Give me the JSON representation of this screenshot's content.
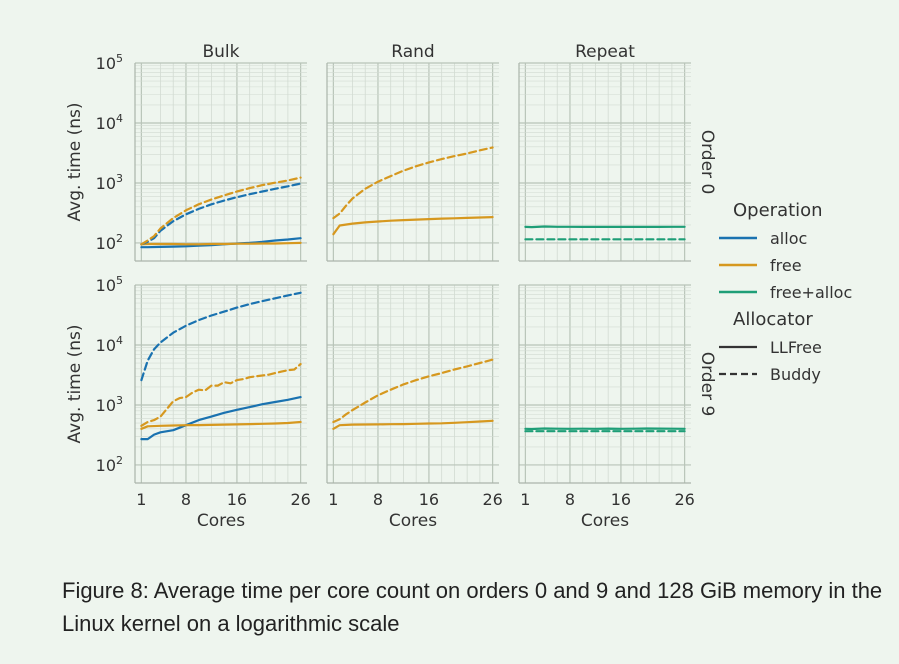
{
  "caption": "Figure 8: Average time per core count on orders 0 and 9 and 128 GiB memory in the Linux kernel on a logarithmic scale",
  "chart_data": {
    "type": "line",
    "scale": "log",
    "ylim": [
      50,
      100000
    ],
    "xlim": [
      0,
      27
    ],
    "xticks": [
      1,
      8,
      16,
      26
    ],
    "yticks": [
      100,
      1000,
      10000,
      100000
    ],
    "ytick_labels": [
      {
        "base": "10",
        "exp": "2"
      },
      {
        "base": "10",
        "exp": "3"
      },
      {
        "base": "10",
        "exp": "4"
      },
      {
        "base": "10",
        "exp": "5"
      }
    ],
    "columns": [
      "Bulk",
      "Rand",
      "Repeat"
    ],
    "rows": [
      "Order 0",
      "Order 9"
    ],
    "xlabel": "Cores",
    "ylabel": "Avg. time (ns)",
    "grid": true,
    "legend": {
      "placement": "right",
      "operation_title": "Operation",
      "operations": [
        {
          "name": "alloc",
          "color": "#1a72b0"
        },
        {
          "name": "free",
          "color": "#d6981f"
        },
        {
          "name": "free+alloc",
          "color": "#1e9e77"
        }
      ],
      "allocator_title": "Allocator",
      "allocators": [
        {
          "name": "LLFree",
          "style": "solid"
        },
        {
          "name": "Buddy",
          "style": "dashed"
        }
      ]
    },
    "panels": [
      {
        "row": "Order 0",
        "col": "Bulk",
        "series": [
          {
            "op": "alloc",
            "allocator": "LLFree",
            "x": [
              1,
              2,
              4,
              6,
              8,
              10,
              12,
              14,
              16,
              18,
              20,
              22,
              24,
              26
            ],
            "y": [
              85,
              85,
              86,
              87,
              88,
              90,
              92,
              95,
              98,
              100,
              104,
              110,
              114,
              120
            ]
          },
          {
            "op": "free",
            "allocator": "LLFree",
            "x": [
              1,
              2,
              4,
              6,
              8,
              10,
              12,
              14,
              16,
              18,
              20,
              22,
              24,
              26
            ],
            "y": [
              95,
              96,
              96,
              96,
              95,
              95,
              96,
              96,
              97,
              97,
              98,
              98,
              99,
              100
            ]
          },
          {
            "op": "alloc",
            "allocator": "Buddy",
            "x": [
              1,
              2,
              3,
              4,
              6,
              8,
              10,
              12,
              14,
              16,
              18,
              20,
              22,
              24,
              26
            ],
            "y": [
              95,
              105,
              120,
              160,
              230,
              300,
              370,
              440,
              510,
              580,
              650,
              720,
              800,
              880,
              980
            ]
          },
          {
            "op": "free",
            "allocator": "Buddy",
            "x": [
              1,
              2,
              3,
              4,
              6,
              8,
              10,
              12,
              14,
              16,
              18,
              20,
              22,
              24,
              26
            ],
            "y": [
              95,
              110,
              130,
              175,
              260,
              350,
              440,
              530,
              620,
              720,
              820,
              920,
              1010,
              1100,
              1230
            ]
          }
        ]
      },
      {
        "row": "Order 0",
        "col": "Rand",
        "series": [
          {
            "op": "free",
            "allocator": "LLFree",
            "x": [
              1,
              2,
              4,
              6,
              8,
              10,
              12,
              14,
              16,
              18,
              20,
              22,
              24,
              26
            ],
            "y": [
              140,
              195,
              210,
              220,
              228,
              235,
              240,
              245,
              250,
              255,
              258,
              262,
              266,
              270
            ]
          },
          {
            "op": "free",
            "allocator": "Buddy",
            "x": [
              1,
              2,
              3,
              4,
              6,
              8,
              10,
              12,
              14,
              16,
              18,
              20,
              22,
              24,
              26
            ],
            "y": [
              260,
              310,
              420,
              550,
              800,
              1050,
              1300,
              1600,
              1900,
              2200,
              2500,
              2800,
              3100,
              3500,
              3900
            ]
          }
        ]
      },
      {
        "row": "Order 0",
        "col": "Repeat",
        "series": [
          {
            "op": "free+alloc",
            "allocator": "LLFree",
            "x": [
              1,
              2,
              4,
              6,
              8,
              10,
              12,
              14,
              16,
              18,
              20,
              22,
              24,
              26
            ],
            "y": [
              185,
              184,
              188,
              186,
              186,
              185,
              185,
              185,
              185,
              185,
              185,
              185,
              186,
              186
            ]
          },
          {
            "op": "free+alloc",
            "allocator": "Buddy",
            "x": [
              1,
              4,
              8,
              12,
              16,
              20,
              24,
              26
            ],
            "y": [
              115,
              115,
              115,
              115,
              115,
              115,
              115,
              115
            ]
          }
        ]
      },
      {
        "row": "Order 9",
        "col": "Bulk",
        "series": [
          {
            "op": "alloc",
            "allocator": "LLFree",
            "x": [
              1,
              2,
              3,
              4,
              6,
              8,
              10,
              12,
              14,
              16,
              18,
              20,
              22,
              24,
              26
            ],
            "y": [
              270,
              270,
              320,
              350,
              380,
              460,
              560,
              640,
              740,
              830,
              920,
              1030,
              1120,
              1220,
              1350
            ]
          },
          {
            "op": "free",
            "allocator": "LLFree",
            "x": [
              1,
              2,
              4,
              6,
              8,
              10,
              12,
              14,
              16,
              18,
              20,
              22,
              24,
              26
            ],
            "y": [
              400,
              440,
              450,
              455,
              460,
              462,
              465,
              470,
              475,
              480,
              485,
              490,
              500,
              520
            ]
          },
          {
            "op": "alloc",
            "allocator": "Buddy",
            "x": [
              1,
              2,
              3,
              4,
              6,
              8,
              10,
              12,
              14,
              16,
              18,
              20,
              22,
              24,
              26
            ],
            "y": [
              2600,
              5500,
              8500,
              11000,
              16000,
              21000,
              26000,
              31000,
              36000,
              42000,
              48000,
              54000,
              60000,
              67000,
              74000
            ]
          },
          {
            "op": "free",
            "allocator": "Buddy",
            "x": [
              1,
              2,
              3,
              4,
              5,
              6,
              7,
              8,
              9,
              10,
              11,
              12,
              13,
              14,
              15,
              16,
              17,
              18,
              19,
              20,
              21,
              22,
              23,
              24,
              25,
              26
            ],
            "y": [
              450,
              520,
              560,
              640,
              860,
              1150,
              1300,
              1350,
              1600,
              1800,
              1750,
              2100,
              2100,
              2400,
              2300,
              2600,
              2700,
              2900,
              3000,
              3100,
              3200,
              3400,
              3600,
              3800,
              3900,
              4800
            ]
          }
        ]
      },
      {
        "row": "Order 9",
        "col": "Rand",
        "series": [
          {
            "op": "free",
            "allocator": "LLFree",
            "x": [
              1,
              2,
              4,
              6,
              8,
              10,
              12,
              14,
              16,
              18,
              20,
              22,
              24,
              26
            ],
            "y": [
              400,
              460,
              470,
              472,
              475,
              478,
              480,
              485,
              490,
              495,
              505,
              515,
              530,
              545
            ]
          },
          {
            "op": "free",
            "allocator": "Buddy",
            "x": [
              1,
              2,
              3,
              4,
              6,
              8,
              10,
              12,
              14,
              16,
              18,
              20,
              22,
              24,
              26
            ],
            "y": [
              520,
              580,
              700,
              820,
              1100,
              1450,
              1800,
              2200,
              2600,
              3000,
              3400,
              3900,
              4400,
              5000,
              5700
            ]
          }
        ]
      },
      {
        "row": "Order 9",
        "col": "Repeat",
        "series": [
          {
            "op": "free+alloc",
            "allocator": "LLFree",
            "x": [
              1,
              2,
              4,
              6,
              8,
              10,
              12,
              14,
              16,
              18,
              20,
              22,
              24,
              26
            ],
            "y": [
              400,
              398,
              405,
              402,
              400,
              402,
              401,
              403,
              400,
              402,
              405,
              403,
              402,
              400
            ]
          },
          {
            "op": "free+alloc",
            "allocator": "Buddy",
            "x": [
              1,
              4,
              8,
              12,
              16,
              20,
              24,
              26
            ],
            "y": [
              365,
              365,
              365,
              365,
              365,
              365,
              365,
              365
            ]
          }
        ]
      }
    ]
  }
}
